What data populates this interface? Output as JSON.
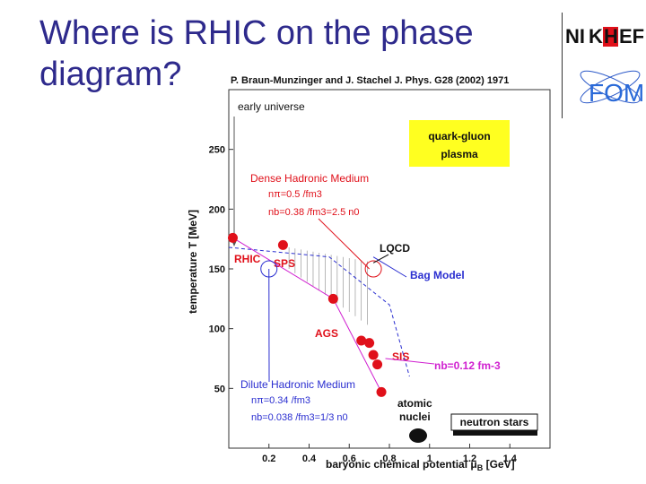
{
  "slide": {
    "title_line1": "Where is RHIC on the phase",
    "title_line2": "diagram?"
  },
  "logos": {
    "nikhef_left": "NI",
    "nikhef_k": "K",
    "nikhef_h": "H",
    "nikhef_right": "EF",
    "fom": "FOM"
  },
  "colors": {
    "title": "#2e2a8c",
    "red": "#e0101a",
    "blue": "#2a2ed0",
    "magenta": "#d020d0",
    "qgp_box": "#ffff20"
  },
  "chart_data": {
    "type": "scatter",
    "citation": "P. Braun-Munzinger and J. Stachel J. Phys. G28 (2002) 1971",
    "xlabel_prefix": "baryonic chemical potential ",
    "xlabel_mu": "μ",
    "xlabel_sub": "B",
    "xlabel_unit": " [GeV]",
    "ylabel": "temperature T [MeV]",
    "xlim": [
      0,
      1.6
    ],
    "ylim": [
      0,
      300
    ],
    "x_ticks": [
      "0.2",
      "0.4",
      "0.6",
      "0.8",
      "1",
      "1.2",
      "1.4"
    ],
    "x_tick_values": [
      0.2,
      0.4,
      0.6,
      0.8,
      1.0,
      1.2,
      1.4
    ],
    "y_ticks": [
      "50",
      "100",
      "150",
      "200",
      "250"
    ],
    "y_tick_values": [
      50,
      100,
      150,
      200,
      250
    ],
    "freezeout_points": [
      {
        "x": 0.02,
        "y": 176
      },
      {
        "x": 0.27,
        "y": 170
      },
      {
        "x": 0.52,
        "y": 125
      },
      {
        "x": 0.66,
        "y": 90
      },
      {
        "x": 0.7,
        "y": 88
      },
      {
        "x": 0.72,
        "y": 78
      },
      {
        "x": 0.74,
        "y": 70
      },
      {
        "x": 0.76,
        "y": 47
      }
    ],
    "labels": {
      "early_universe": "early universe",
      "qgp_line1": "quark-gluon",
      "qgp_line2": "plasma",
      "dense_title": "Dense Hadronic Medium",
      "dense_n_pi": "nπ=0.5 /fm3",
      "dense_n_b": "nb=0.38 /fm3=2.5 n0",
      "lqcd": "LQCD",
      "rhic": "RHIC",
      "sps": "SPS",
      "bag_model": "Bag Model",
      "ags": "AGS",
      "sis": "SIS",
      "nb_line": "nb=0.12 fm-3",
      "dilute_title": "Dilute Hadronic Medium",
      "dilute_n_pi": "nπ=0.34 /fm3",
      "dilute_n_b": "nb=0.038 /fm3=1/3 n0",
      "atomic_line1": "atomic",
      "atomic_line2": "nuclei",
      "neutron_stars": "neutron stars"
    }
  }
}
